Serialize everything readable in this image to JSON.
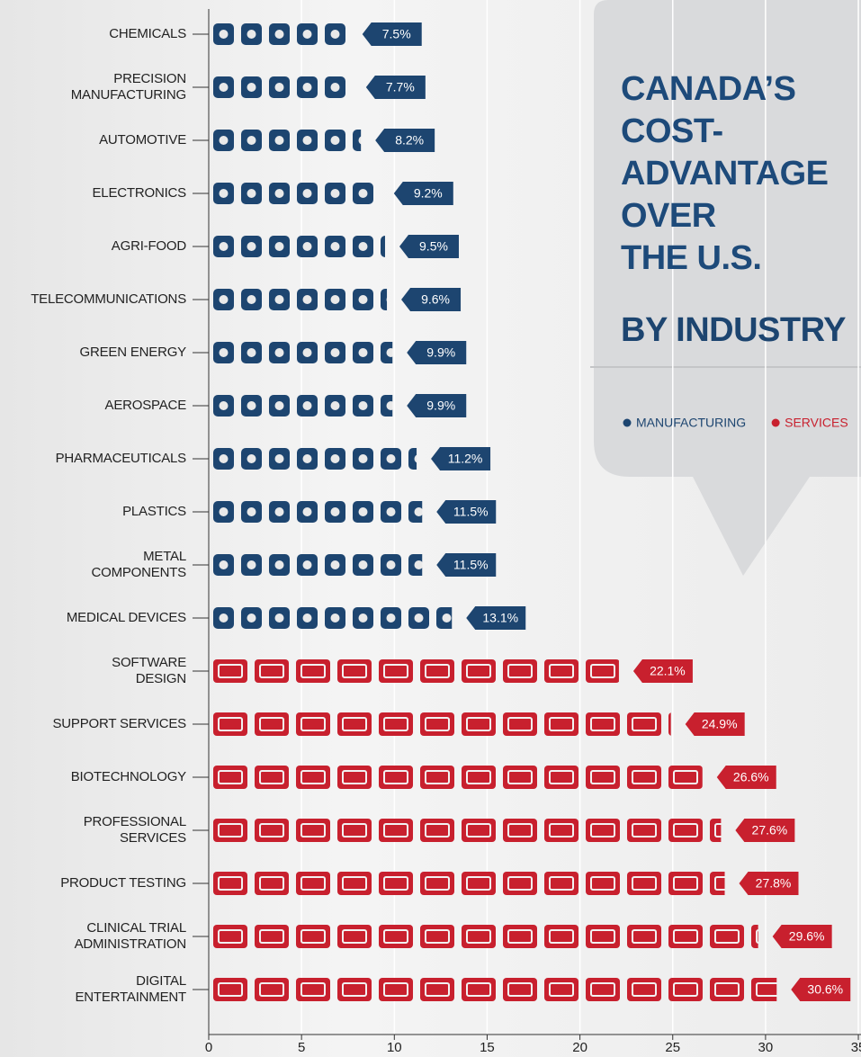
{
  "chart_data": {
    "type": "bar",
    "orientation": "horizontal",
    "title": "CANADA’S\nCOST-\nADVANTAGE\nOVER\nTHE U.S.",
    "subtitle": "BY INDUSTRY",
    "categories": [
      "CHEMICALS",
      "PRECISION\nMANUFACTURING",
      "AUTOMOTIVE",
      "ELECTRONICS",
      "AGRI-FOOD",
      "TELECOMMUNICATIONS",
      "GREEN ENERGY",
      "AEROSPACE",
      "PHARMACEUTICALS",
      "PLASTICS",
      "METAL\nCOMPONENTS",
      "MEDICAL DEVICES",
      "SOFTWARE\nDESIGN",
      "SUPPORT SERVICES",
      "BIOTECHNOLOGY",
      "PROFESSIONAL\nSERVICES",
      "PRODUCT TESTING",
      "CLINICAL TRIAL\nADMINISTRATION",
      "DIGITAL\nENTERTAINMENT"
    ],
    "series": [
      {
        "name": "MANUFACTURING",
        "color": "#1d4570",
        "values": [
          7.5,
          7.7,
          8.2,
          9.2,
          9.5,
          9.6,
          9.9,
          9.9,
          11.2,
          11.5,
          11.5,
          13.1,
          null,
          null,
          null,
          null,
          null,
          null,
          null
        ],
        "value_labels": [
          "7.5%",
          "7.7%",
          "8.2%",
          "9.2%",
          "9.5%",
          "9.6%",
          "9.9%",
          "9.9%",
          "11.2%",
          "11.5%",
          "11.5%",
          "13.1%",
          null,
          null,
          null,
          null,
          null,
          null,
          null
        ]
      },
      {
        "name": "SERVICES",
        "color": "#c8202e",
        "values": [
          null,
          null,
          null,
          null,
          null,
          null,
          null,
          null,
          null,
          null,
          null,
          null,
          22.1,
          24.9,
          26.6,
          27.6,
          27.8,
          29.6,
          30.6
        ],
        "value_labels": [
          null,
          null,
          null,
          null,
          null,
          null,
          null,
          null,
          null,
          null,
          null,
          null,
          "22.1%",
          "24.9%",
          "26.6%",
          "27.6%",
          "27.8%",
          "29.6%",
          "30.6%"
        ]
      }
    ],
    "xlim": [
      0,
      35
    ],
    "xticks": [
      0,
      5,
      10,
      15,
      20,
      25,
      30,
      35
    ],
    "grid": true,
    "legend": "top-right"
  }
}
